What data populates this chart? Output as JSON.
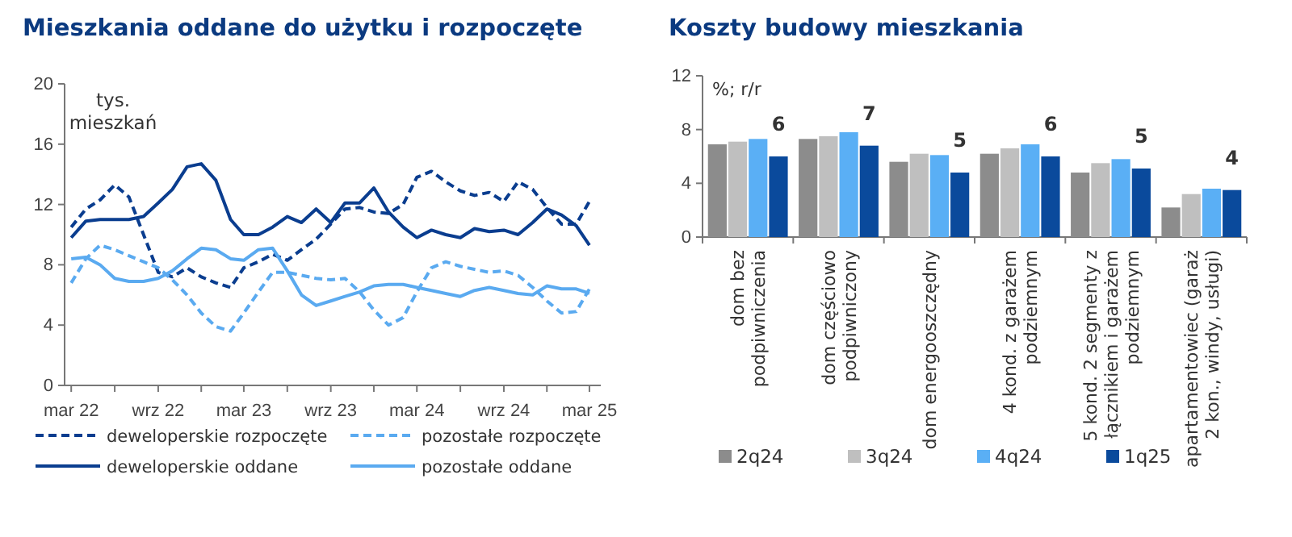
{
  "chart_data": [
    {
      "type": "line",
      "title": "Mieszkania oddane do użytku i rozpoczęte",
      "ylabel": "tys. mieszkań",
      "x": [
        "2022-03",
        "2022-04",
        "2022-05",
        "2022-06",
        "2022-07",
        "2022-08",
        "2022-09",
        "2022-10",
        "2022-11",
        "2022-12",
        "2023-01",
        "2023-02",
        "2023-03",
        "2023-04",
        "2023-05",
        "2023-06",
        "2023-07",
        "2023-08",
        "2023-09",
        "2023-10",
        "2023-11",
        "2023-12",
        "2024-01",
        "2024-02",
        "2024-03",
        "2024-04",
        "2024-05",
        "2024-06",
        "2024-07",
        "2024-08",
        "2024-09",
        "2024-10",
        "2024-11",
        "2024-12",
        "2025-01",
        "2025-02",
        "2025-03"
      ],
      "xlim": [
        "2022-02-15",
        "2025-03-25"
      ],
      "xticks": [
        {
          "value": "2022-03",
          "label": "mar 22"
        },
        {
          "value": "2022-06",
          "label": null
        },
        {
          "value": "2022-09",
          "label": "wrz 22"
        },
        {
          "value": "2022-12",
          "label": null
        },
        {
          "value": "2023-03",
          "label": "mar 23"
        },
        {
          "value": "2023-06",
          "label": null
        },
        {
          "value": "2023-09",
          "label": "wrz 23"
        },
        {
          "value": "2023-12",
          "label": null
        },
        {
          "value": "2024-03",
          "label": "mar 24"
        },
        {
          "value": "2024-06",
          "label": null
        },
        {
          "value": "2024-09",
          "label": "wrz 24"
        },
        {
          "value": "2024-12",
          "label": null
        },
        {
          "value": "2025-03",
          "label": "mar 25"
        }
      ],
      "ylim": [
        0,
        20
      ],
      "yticks": [
        0,
        4,
        8,
        12,
        16,
        20
      ],
      "grid": false,
      "legend": "bottom",
      "series": [
        {
          "name": "deweloperskie rozpoczęte",
          "color": "#0a3d8f",
          "line_style": "dashed",
          "values": [
            10.5,
            11.7,
            12.3,
            13.3,
            12.5,
            10.0,
            7.5,
            7.2,
            7.8,
            7.2,
            6.8,
            6.5,
            7.8,
            8.2,
            8.7,
            8.3,
            9.0,
            9.7,
            10.7,
            11.7,
            11.8,
            11.5,
            11.4,
            12.0,
            13.8,
            14.2,
            13.5,
            12.9,
            12.6,
            12.8,
            12.2,
            13.5,
            13.0,
            11.8,
            10.7,
            10.7,
            12.2
          ]
        },
        {
          "name": "pozostałe rozpoczęte",
          "color": "#5aaaf0",
          "line_style": "dashed",
          "values": [
            6.8,
            8.4,
            9.3,
            9.0,
            8.6,
            8.2,
            7.8,
            7.0,
            6.0,
            4.8,
            3.9,
            3.6,
            4.8,
            6.2,
            7.5,
            7.5,
            7.3,
            7.1,
            7.0,
            7.1,
            6.2,
            5.0,
            4.0,
            4.5,
            6.2,
            7.8,
            8.2,
            7.9,
            7.7,
            7.5,
            7.6,
            7.3,
            6.5,
            5.6,
            4.8,
            4.9,
            6.4
          ]
        },
        {
          "name": "deweloperskie oddane",
          "color": "#0a3d8f",
          "line_style": "solid",
          "values": [
            9.8,
            10.9,
            11.0,
            11.0,
            11.0,
            11.2,
            12.1,
            13.0,
            14.5,
            14.7,
            13.6,
            11.0,
            10.0,
            10.0,
            10.5,
            11.2,
            10.8,
            11.7,
            10.8,
            12.1,
            12.1,
            13.1,
            11.5,
            10.5,
            9.8,
            10.3,
            10.0,
            9.8,
            10.4,
            10.2,
            10.3,
            10.0,
            10.8,
            11.7,
            11.3,
            10.6,
            9.3
          ]
        },
        {
          "name": "pozostałe oddane",
          "color": "#5aaaf0",
          "line_style": "solid",
          "values": [
            8.4,
            8.5,
            8.0,
            7.1,
            6.9,
            6.9,
            7.1,
            7.6,
            8.4,
            9.1,
            9.0,
            8.4,
            8.3,
            9.0,
            9.1,
            7.6,
            6.0,
            5.3,
            5.6,
            5.9,
            6.2,
            6.6,
            6.7,
            6.7,
            6.5,
            6.3,
            6.1,
            5.9,
            6.3,
            6.5,
            6.3,
            6.1,
            6.0,
            6.6,
            6.4,
            6.4,
            6.1
          ]
        }
      ]
    },
    {
      "type": "bar",
      "title": "Koszty budowy mieszkania",
      "ylabel": "%; r/r",
      "categories": [
        "dom bez\npodpiwniczenia",
        "dom częściowo\npodpiwniczony",
        "dom energooszczędny",
        "4 kond. z garażem\npodziemnym",
        "5 kond. 2 segmenty z\nłącznikiem i  garażem\npodziemnym",
        "apartamentowiec (garaż\n2 kon., windy, usługi)"
      ],
      "ylim": [
        0,
        12
      ],
      "yticks": [
        0,
        4,
        8,
        12
      ],
      "grid": false,
      "legend": "bottom",
      "series": [
        {
          "name": "2q24",
          "color": "#8c8c8c",
          "values": [
            6.9,
            7.3,
            5.6,
            6.2,
            4.8,
            2.2
          ]
        },
        {
          "name": "3q24",
          "color": "#bfbfbf",
          "values": [
            7.1,
            7.5,
            6.2,
            6.6,
            5.5,
            3.2
          ]
        },
        {
          "name": "4q24",
          "color": "#5aaff5",
          "values": [
            7.3,
            7.8,
            6.1,
            6.9,
            5.8,
            3.6
          ]
        },
        {
          "name": "1q25",
          "color": "#0a4a9c",
          "values": [
            6.0,
            6.8,
            4.8,
            6.0,
            5.1,
            3.5
          ],
          "value_labels": [
            "6",
            "7",
            "5",
            "6",
            "5",
            "4"
          ]
        }
      ]
    }
  ]
}
